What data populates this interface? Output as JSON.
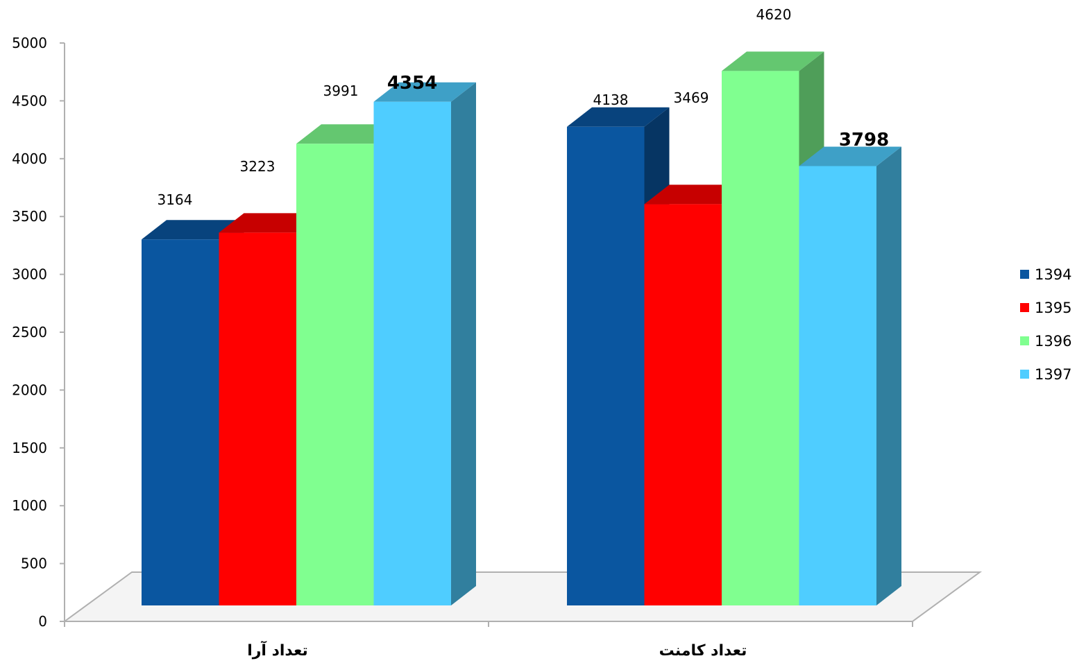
{
  "chart_data": {
    "type": "bar",
    "categories": [
      "تعداد آرا",
      "تعداد کامنت"
    ],
    "series": [
      {
        "name": "1394",
        "color": "#0a56a0",
        "values": [
          3164,
          4138
        ],
        "labels": [
          "3164",
          "4138"
        ]
      },
      {
        "name": "1395",
        "color": "#ff0000",
        "values": [
          3223,
          3469
        ],
        "labels": [
          "3223",
          "3469"
        ]
      },
      {
        "name": "1396",
        "color": "#80ff90",
        "values": [
          3991,
          4620
        ],
        "labels": [
          "3991",
          "4620"
        ]
      },
      {
        "name": "1397",
        "color": "#4fcdff",
        "values": [
          4354,
          3798
        ],
        "labels": [
          "4354",
          "3798"
        ]
      }
    ],
    "emphasized_series": "1397",
    "ylim": [
      0,
      5000
    ],
    "yticks": [
      0,
      500,
      1000,
      1500,
      2000,
      2500,
      3000,
      3500,
      4000,
      4500,
      5000
    ],
    "grid": false,
    "legend_position": "right",
    "style": "3d-clustered"
  }
}
